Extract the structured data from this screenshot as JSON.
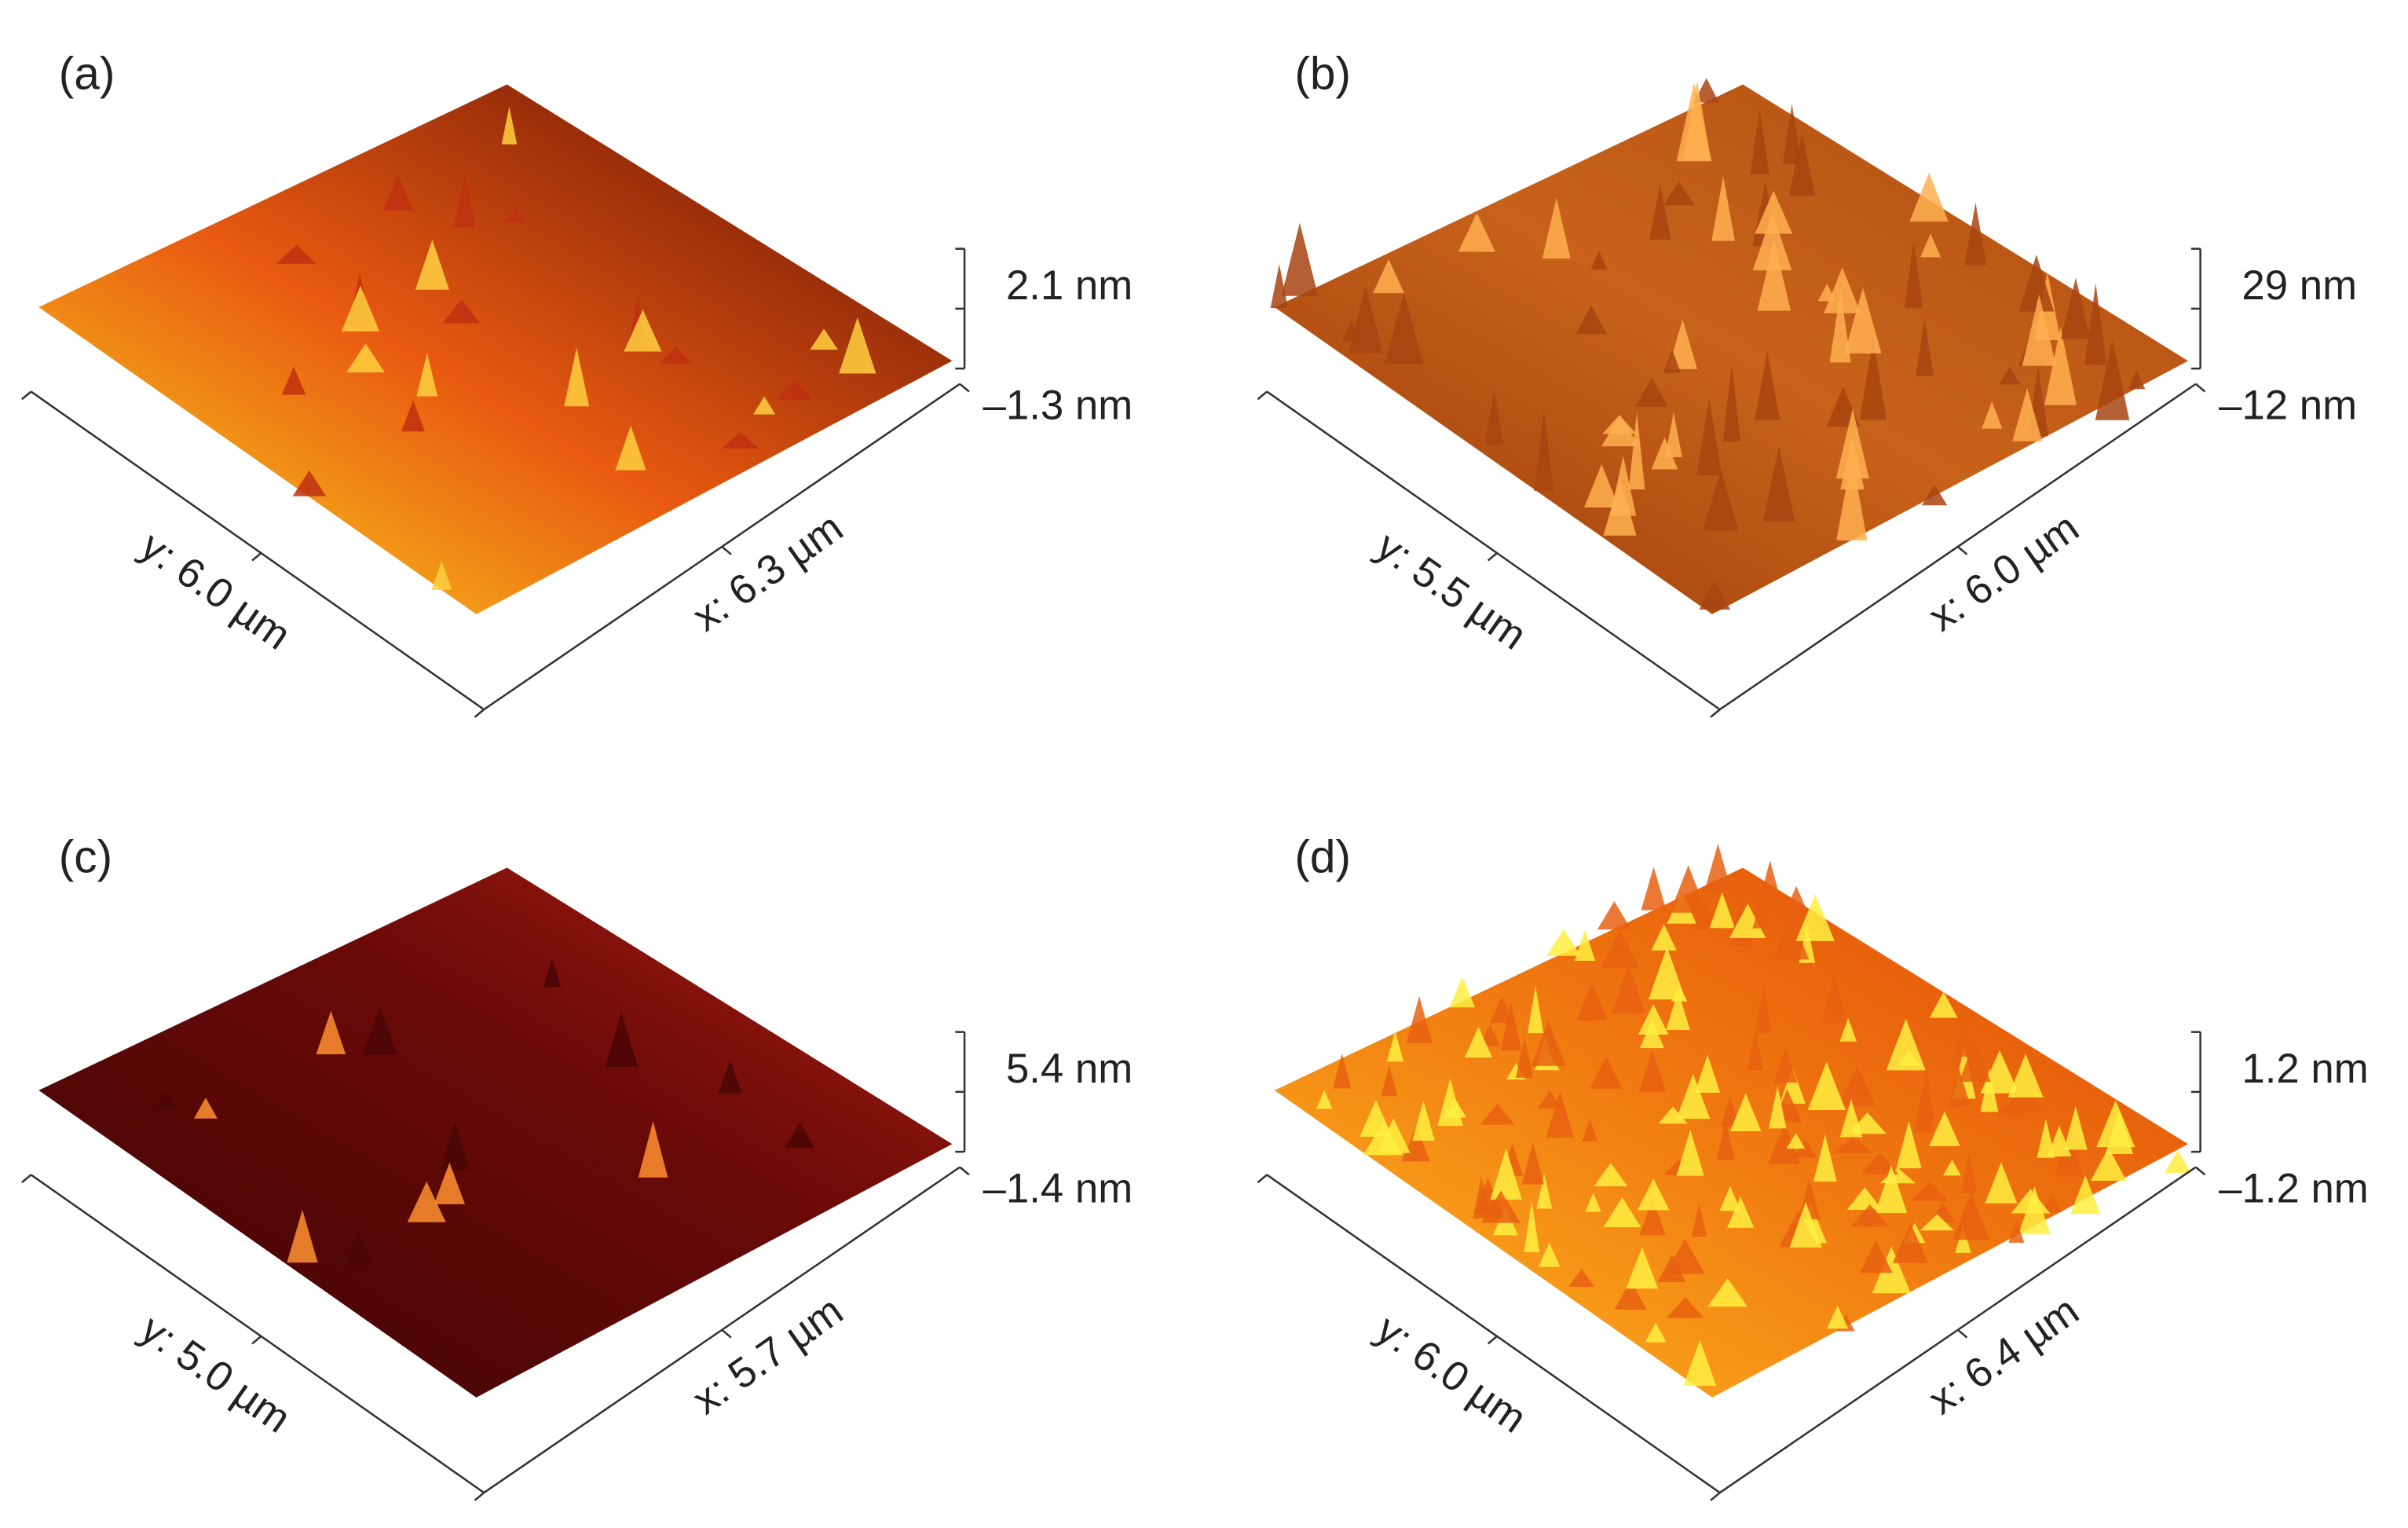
{
  "panels": [
    {
      "label": "(a)",
      "y_axis": "y: 6.0 µm",
      "x_axis": "x: 6.3 µm",
      "z_max": "2.1 nm",
      "z_min": "–1.3 nm"
    },
    {
      "label": "(b)",
      "y_axis": "y: 5.5 µm",
      "x_axis": "x: 6.0 µm",
      "z_max": "29 nm",
      "z_min": "–12 nm"
    },
    {
      "label": "(c)",
      "y_axis": "y: 5.0 µm",
      "x_axis": "x: 5.7 µm",
      "z_max": "5.4 nm",
      "z_min": "–1.4 nm"
    },
    {
      "label": "(d)",
      "y_axis": "y: 6.0 µm",
      "x_axis": "x: 6.4 µm",
      "z_max": "1.2 nm",
      "z_min": "–1.2 nm"
    }
  ]
}
